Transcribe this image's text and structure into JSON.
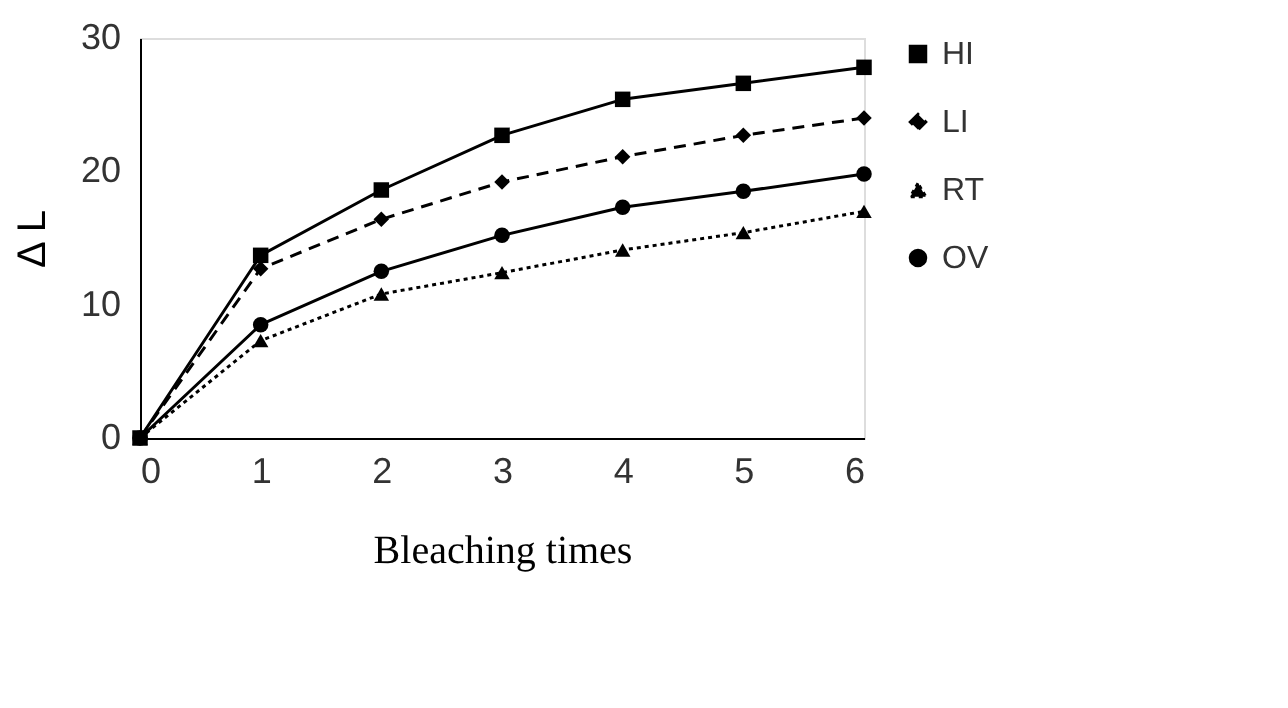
{
  "chart_data": {
    "type": "line",
    "xlabel": "Bleaching times",
    "ylabel": "Δ L",
    "x": [
      0,
      1,
      2,
      3,
      4,
      5,
      6
    ],
    "xlim": [
      0,
      6
    ],
    "xticks": [
      0,
      1,
      2,
      3,
      4,
      5,
      6
    ],
    "ylim": [
      0,
      30
    ],
    "yticks": [
      0,
      10,
      20,
      30
    ],
    "grid": false,
    "legend": "right",
    "series": [
      {
        "name": "HI",
        "color": "#000000",
        "marker": "square",
        "line_style": "solid",
        "values": [
          0,
          13.7,
          18.6,
          22.7,
          25.4,
          26.6,
          27.8
        ]
      },
      {
        "name": "LI",
        "color": "#000000",
        "marker": "diamond",
        "line_style": "dashed",
        "values": [
          0,
          12.7,
          16.4,
          19.2,
          21.1,
          22.7,
          24.0
        ]
      },
      {
        "name": "RT",
        "color": "#000000",
        "marker": "triangle",
        "line_style": "dotted",
        "values": [
          0,
          7.3,
          10.8,
          12.4,
          14.1,
          15.4,
          17.0
        ]
      },
      {
        "name": "OV",
        "color": "#000000",
        "marker": "circle",
        "line_style": "solid",
        "values": [
          0,
          8.5,
          12.5,
          15.2,
          17.3,
          18.5,
          19.8
        ]
      }
    ]
  }
}
